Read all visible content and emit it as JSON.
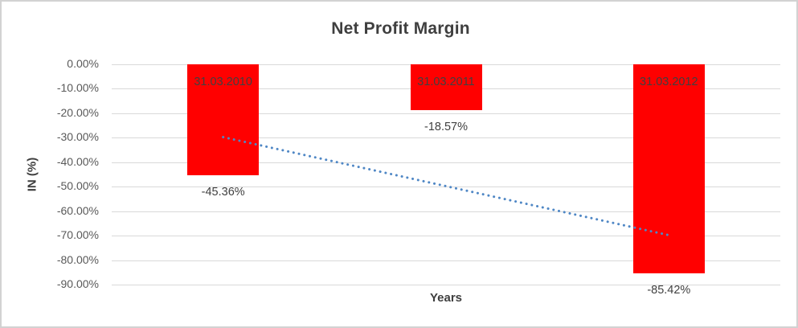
{
  "chart_data": {
    "type": "bar",
    "title": "Net Profit Margin",
    "xlabel": "Years",
    "ylabel": "IN (%)",
    "categories": [
      "31.03.2010",
      "31.03.2011",
      "31.03.2012"
    ],
    "values": [
      -45.36,
      -18.57,
      -85.42
    ],
    "value_labels": [
      "-45.36%",
      "-18.57%",
      "-85.42%"
    ],
    "ylim": [
      -90,
      0
    ],
    "yticks": [
      0,
      -10,
      -20,
      -30,
      -40,
      -50,
      -60,
      -70,
      -80,
      -90
    ],
    "ytick_labels": [
      "0.00%",
      "-10.00%",
      "-20.00%",
      "-30.00%",
      "-40.00%",
      "-50.00%",
      "-60.00%",
      "-70.00%",
      "-80.00%",
      "-90.00%"
    ],
    "grid": true,
    "legend": "none",
    "bar_color": "#ff0000",
    "gridline_color": "#d9d9d9",
    "label_color": "#404040",
    "trendline": {
      "type": "linear",
      "style": "dotted",
      "color": "#4f87c5",
      "start_value": -29.75,
      "end_value": -69.81
    }
  }
}
